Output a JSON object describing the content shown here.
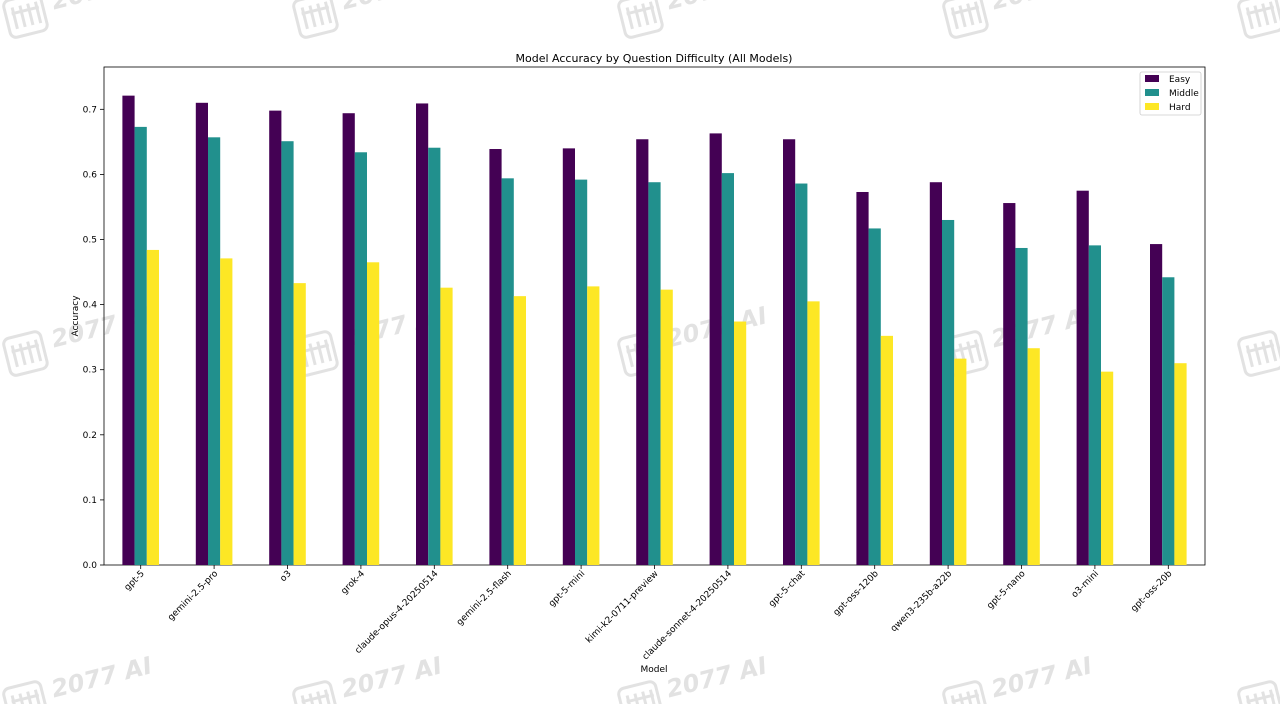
{
  "chart_data": {
    "type": "bar",
    "title": "Model Accuracy by Question Difficulty (All Models)",
    "xlabel": "Model",
    "ylabel": "Accuracy",
    "ylim": [
      0.0,
      0.765
    ],
    "yticks": [
      "0.0",
      "0.1",
      "0.2",
      "0.3",
      "0.4",
      "0.5",
      "0.6",
      "0.7"
    ],
    "grid": false,
    "legend_position": "top-right",
    "categories": [
      "gpt-5",
      "gemini-2.5-pro",
      "o3",
      "grok-4",
      "claude-opus-4-20250514",
      "gemini-2.5-flash",
      "gpt-5-mini",
      "kimi-k2-0711-preview",
      "claude-sonnet-4-20250514",
      "gpt-5-chat",
      "gpt-oss-120b",
      "qwen3-235b-a22b",
      "gpt-5-nano",
      "o3-mini",
      "gpt-oss-20b"
    ],
    "series": [
      {
        "name": "Easy",
        "color": "#440154",
        "values": [
          0.721,
          0.71,
          0.698,
          0.694,
          0.709,
          0.639,
          0.64,
          0.654,
          0.663,
          0.654,
          0.573,
          0.588,
          0.556,
          0.575,
          0.493
        ]
      },
      {
        "name": "Middle",
        "color": "#21908d",
        "values": [
          0.673,
          0.657,
          0.651,
          0.634,
          0.641,
          0.594,
          0.592,
          0.588,
          0.602,
          0.586,
          0.517,
          0.53,
          0.487,
          0.491,
          0.442
        ]
      },
      {
        "name": "Hard",
        "color": "#fde725",
        "values": [
          0.484,
          0.471,
          0.433,
          0.465,
          0.426,
          0.413,
          0.428,
          0.423,
          0.374,
          0.405,
          0.352,
          0.317,
          0.333,
          0.297,
          0.31
        ]
      }
    ]
  },
  "watermark": {
    "text": "2077 AI"
  }
}
